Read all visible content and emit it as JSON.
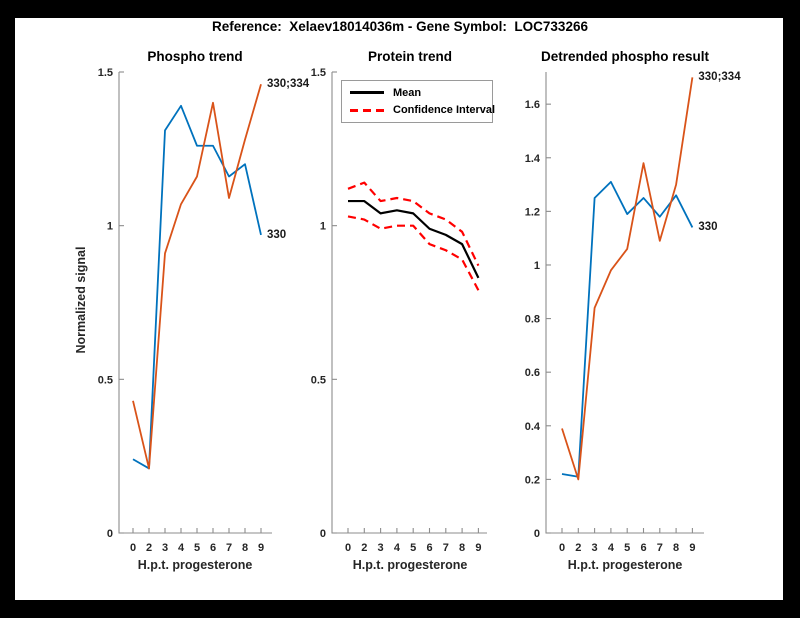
{
  "frame": {
    "title": "Reference:  Xelaev18014036m - Gene Symbol:  LOC733266"
  },
  "colors": {
    "blue": "#0072BD",
    "orange": "#D95319",
    "red": "#FF0000",
    "black": "#000000",
    "spine": "#8C8C8C",
    "tick_text": "#262626",
    "frame_bg": "#000000",
    "figure_bg": "#FFFFFF"
  },
  "chart_data": [
    {
      "type": "line",
      "title": "Phospho trend",
      "xlabel": "H.p.t. progesterone",
      "ylabel": "Normalized signal",
      "categories": [
        "0",
        "2",
        "3",
        "4",
        "5",
        "6",
        "7",
        "8",
        "9"
      ],
      "ylim": [
        0,
        1.5
      ],
      "ytick_values": [
        0,
        0.5,
        1,
        1.5
      ],
      "ytick_labels": [
        "0",
        "0.5",
        "1",
        "1.5"
      ],
      "grid": "off",
      "series": [
        {
          "name": "330",
          "color": "#0072BD",
          "style": "solid",
          "width": 1.8,
          "values": [
            0.24,
            0.21,
            1.31,
            1.39,
            1.26,
            1.26,
            1.16,
            1.2,
            0.97
          ],
          "end_label": "330"
        },
        {
          "name": "330;334",
          "color": "#D95319",
          "style": "solid",
          "width": 1.8,
          "values": [
            0.43,
            0.21,
            0.91,
            1.07,
            1.16,
            1.4,
            1.09,
            1.28,
            1.46
          ],
          "end_label": "330;334"
        }
      ]
    },
    {
      "type": "line",
      "title": "Protein trend",
      "xlabel": "H.p.t. progesterone",
      "ylabel": "",
      "categories": [
        "0",
        "2",
        "3",
        "4",
        "5",
        "6",
        "7",
        "8",
        "9"
      ],
      "ylim": [
        0,
        1.5
      ],
      "ytick_values": [
        0,
        0.5,
        1,
        1.5
      ],
      "ytick_labels": [
        "0",
        "0.5",
        "1",
        "1.5"
      ],
      "grid": "off",
      "legend": {
        "position": "top-left",
        "entries": [
          {
            "label": "Mean",
            "color": "#000000",
            "style": "solid"
          },
          {
            "label": "Confidence Interval",
            "color": "#FF0000",
            "style": "dashed"
          }
        ]
      },
      "series": [
        {
          "name": "Mean",
          "color": "#000000",
          "style": "solid",
          "width": 2.2,
          "values": [
            1.08,
            1.08,
            1.04,
            1.05,
            1.04,
            0.99,
            0.97,
            0.94,
            0.83
          ]
        },
        {
          "name": "CI upper",
          "color": "#FF0000",
          "style": "dashed",
          "width": 2.2,
          "values": [
            1.12,
            1.14,
            1.08,
            1.09,
            1.08,
            1.04,
            1.02,
            0.98,
            0.87
          ]
        },
        {
          "name": "CI lower",
          "color": "#FF0000",
          "style": "dashed",
          "width": 2.2,
          "values": [
            1.03,
            1.02,
            0.99,
            1.0,
            1.0,
            0.94,
            0.92,
            0.89,
            0.79
          ]
        }
      ]
    },
    {
      "type": "line",
      "title": "Detrended phospho result",
      "xlabel": "H.p.t. progesterone",
      "ylabel": "",
      "categories": [
        "0",
        "2",
        "3",
        "4",
        "5",
        "6",
        "7",
        "8",
        "9"
      ],
      "ylim": [
        0,
        1.72
      ],
      "ytick_values": [
        0,
        0.2,
        0.4,
        0.6,
        0.8,
        1,
        1.2,
        1.4,
        1.6
      ],
      "ytick_labels": [
        "0",
        "0.2",
        "0.4",
        "0.6",
        "0.8",
        "1",
        "1.2",
        "1.4",
        "1.6"
      ],
      "grid": "off",
      "series": [
        {
          "name": "330",
          "color": "#0072BD",
          "style": "solid",
          "width": 1.8,
          "values": [
            0.22,
            0.21,
            1.25,
            1.31,
            1.19,
            1.25,
            1.18,
            1.26,
            1.14
          ],
          "end_label": "330"
        },
        {
          "name": "330;334",
          "color": "#D95319",
          "style": "solid",
          "width": 1.8,
          "values": [
            0.39,
            0.2,
            0.84,
            0.98,
            1.06,
            1.38,
            1.09,
            1.3,
            1.7
          ],
          "end_label": "330;334"
        }
      ]
    }
  ]
}
